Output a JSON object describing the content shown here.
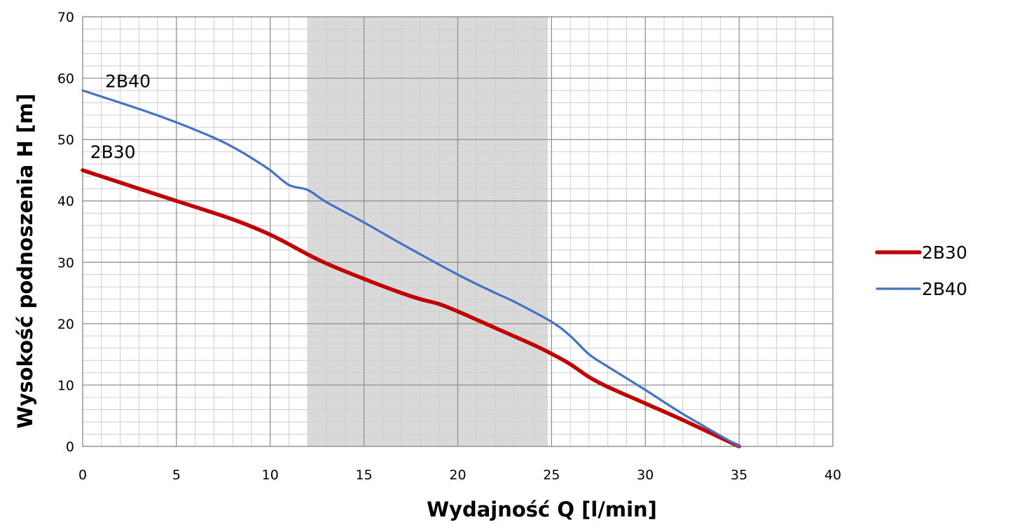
{
  "chart_data": {
    "type": "line",
    "xlabel": "Wydajność Q [l/min]",
    "ylabel": "Wysokość podnoszenia H [m]",
    "xlim": [
      0,
      40
    ],
    "ylim": [
      0,
      70
    ],
    "x_ticks": [
      0,
      5,
      10,
      15,
      20,
      25,
      30,
      35,
      40
    ],
    "y_ticks": [
      0,
      10,
      20,
      30,
      40,
      50,
      60,
      70
    ],
    "x_minor_step": 1,
    "y_minor_step": 2,
    "grid": true,
    "legend_position": "right",
    "highlight_range": {
      "x": [
        12,
        24.8
      ],
      "color": "#d9d9d9"
    },
    "series": [
      {
        "name": "2B30",
        "color": "#c00000",
        "label_at": {
          "x": 0.4,
          "y": 47
        },
        "points": [
          [
            0,
            45
          ],
          [
            3,
            42
          ],
          [
            5,
            40
          ],
          [
            8,
            37
          ],
          [
            10,
            34.5
          ],
          [
            12,
            31.3
          ],
          [
            13,
            29.8
          ],
          [
            15,
            27.3
          ],
          [
            17,
            25
          ],
          [
            18,
            24
          ],
          [
            19,
            23.2
          ],
          [
            20,
            22
          ],
          [
            22,
            19.3
          ],
          [
            24,
            16.6
          ],
          [
            25,
            15.1
          ],
          [
            26,
            13.4
          ],
          [
            27,
            11.3
          ],
          [
            28,
            9.7
          ],
          [
            30,
            7
          ],
          [
            32,
            4.3
          ],
          [
            35,
            0
          ]
        ]
      },
      {
        "name": "2B40",
        "color": "#4472c4",
        "label_at": {
          "x": 1.2,
          "y": 58.5
        },
        "points": [
          [
            0,
            58
          ],
          [
            3,
            55
          ],
          [
            5,
            52.8
          ],
          [
            7,
            50.3
          ],
          [
            8,
            48.8
          ],
          [
            9,
            47
          ],
          [
            10,
            45
          ],
          [
            11,
            42.6
          ],
          [
            12,
            41.8
          ],
          [
            13,
            39.8
          ],
          [
            15,
            36.5
          ],
          [
            17,
            33
          ],
          [
            20,
            28
          ],
          [
            22,
            25
          ],
          [
            23,
            23.6
          ],
          [
            25,
            20.3
          ],
          [
            26,
            18
          ],
          [
            27,
            15
          ],
          [
            28,
            13
          ],
          [
            30,
            9.2
          ],
          [
            32,
            5.3
          ],
          [
            35,
            0
          ]
        ]
      }
    ]
  }
}
